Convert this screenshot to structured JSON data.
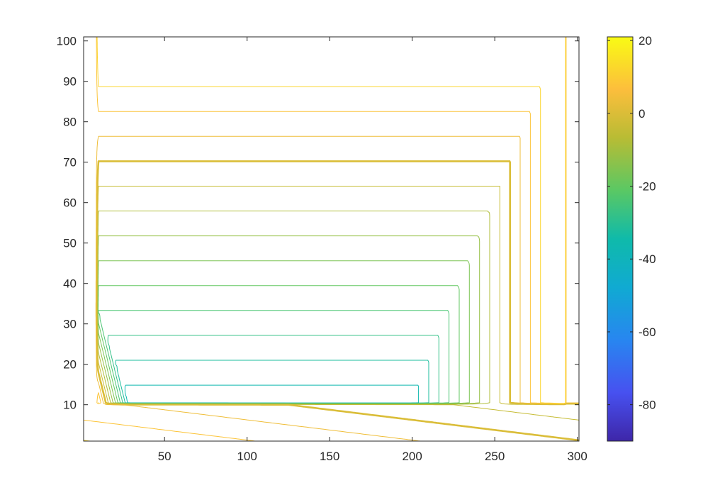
{
  "chart_data": {
    "type": "contour",
    "title": "",
    "xlabel": "",
    "ylabel": "",
    "xlim": [
      1,
      301
    ],
    "ylim": [
      1,
      101
    ],
    "x_ticks": [
      50,
      100,
      150,
      200,
      250,
      300
    ],
    "y_ticks": [
      10,
      20,
      30,
      40,
      50,
      60,
      70,
      80,
      90,
      100
    ],
    "colorbar": {
      "range": [
        -90,
        21
      ],
      "ticks": [
        20,
        0,
        -20,
        -40,
        -60,
        -80
      ],
      "colormap": "parula"
    },
    "levels": [
      -88,
      -84,
      -80,
      -76,
      -72,
      -68,
      -64,
      -60,
      -56,
      -52,
      -48,
      -44,
      -40,
      -36,
      -32,
      -28,
      -24,
      -20,
      -16,
      -12,
      -8,
      -4,
      0,
      4,
      8,
      12
    ],
    "bold_level": 0
  }
}
